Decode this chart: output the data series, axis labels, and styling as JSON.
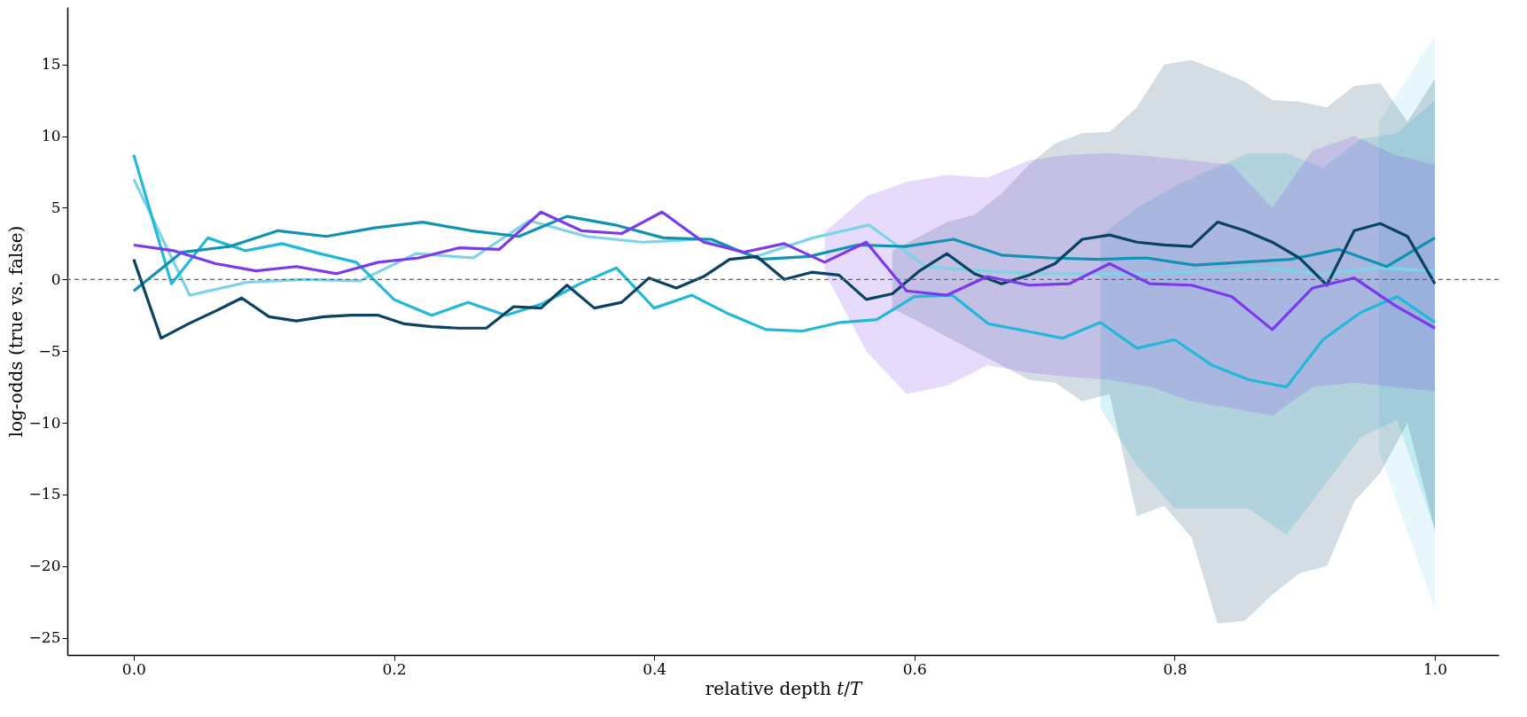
{
  "chart_data": {
    "type": "line",
    "xlabel": "relative depth 𝑡/𝑇",
    "ylabel": "log-odds (true vs. false)",
    "xlim": [
      -0.051,
      1.049
    ],
    "ylim": [
      -26.2,
      19.0
    ],
    "xticks": [
      {
        "value": 0,
        "label": "0.0"
      },
      {
        "value": 0.2,
        "label": "0.2"
      },
      {
        "value": 0.4,
        "label": "0.4"
      },
      {
        "value": 0.6,
        "label": "0.6"
      },
      {
        "value": 0.8,
        "label": "0.8"
      },
      {
        "value": 1,
        "label": "1.0"
      }
    ],
    "yticks": [
      -25,
      -20,
      -15,
      -10,
      -5,
      0,
      5,
      10,
      15
    ],
    "grid": false,
    "line_style": "solid",
    "marker": "none",
    "ref_lines": [
      {
        "axis": "y",
        "value": 0,
        "color": "#666666",
        "line_style": "dashed"
      }
    ],
    "series": [
      {
        "color": "#7dd3e8",
        "x": [
          0,
          0.043,
          0.087,
          0.13,
          0.174,
          0.217,
          0.261,
          0.304,
          0.348,
          0.391,
          0.435,
          0.478,
          0.522,
          0.565,
          0.609,
          0.652,
          0.696,
          0.739,
          0.783,
          0.826,
          0.87,
          0.913,
          0.957,
          1.0
        ],
        "values": [
          7.0,
          -1.1,
          -0.2,
          0.0,
          -0.1,
          1.8,
          1.5,
          4.1,
          3.0,
          2.6,
          2.8,
          1.6,
          2.9,
          3.8,
          0.9,
          0.6,
          0.4,
          0.4,
          0.4,
          0.6,
          0.8,
          0.4,
          0.8,
          0.6
        ],
        "lower": [
          null,
          null,
          null,
          null,
          null,
          null,
          null,
          null,
          null,
          null,
          null,
          null,
          null,
          null,
          null,
          null,
          null,
          null,
          null,
          null,
          null,
          null,
          -12.0,
          -23.0
        ],
        "upper": [
          null,
          null,
          null,
          null,
          null,
          null,
          null,
          null,
          null,
          null,
          null,
          null,
          null,
          null,
          null,
          null,
          null,
          null,
          null,
          null,
          null,
          null,
          11.0,
          17.0
        ]
      },
      {
        "color": "#22b8d9",
        "x": [
          0,
          0.029,
          0.057,
          0.086,
          0.114,
          0.143,
          0.171,
          0.2,
          0.229,
          0.257,
          0.286,
          0.314,
          0.343,
          0.371,
          0.4,
          0.429,
          0.457,
          0.486,
          0.514,
          0.543,
          0.571,
          0.6,
          0.629,
          0.657,
          0.686,
          0.714,
          0.743,
          0.771,
          0.8,
          0.829,
          0.857,
          0.886,
          0.914,
          0.943,
          0.971,
          1.0
        ],
        "values": [
          8.7,
          -0.3,
          2.9,
          2.0,
          2.5,
          1.8,
          1.2,
          -1.4,
          -2.5,
          -1.6,
          -2.5,
          -1.7,
          -0.3,
          0.8,
          -2.0,
          -1.1,
          -2.4,
          -3.5,
          -3.6,
          -3.0,
          -2.8,
          -1.2,
          -1.1,
          -3.1,
          -3.6,
          -4.1,
          -3.0,
          -4.8,
          -4.2,
          -6.0,
          -7.0,
          -7.5,
          -4.2,
          -2.3,
          -1.2,
          -3.0
        ],
        "lower": [
          null,
          null,
          null,
          null,
          null,
          null,
          null,
          null,
          null,
          null,
          null,
          null,
          null,
          null,
          null,
          null,
          null,
          null,
          null,
          null,
          null,
          null,
          null,
          null,
          null,
          null,
          -9.0,
          -13.0,
          -16.0,
          -16.0,
          -16.0,
          -17.8,
          -14.5,
          -11.0,
          -9.8,
          -17.5
        ],
        "upper": [
          null,
          null,
          null,
          null,
          null,
          null,
          null,
          null,
          null,
          null,
          null,
          null,
          null,
          null,
          null,
          null,
          null,
          null,
          null,
          null,
          null,
          null,
          null,
          null,
          null,
          null,
          3.0,
          5.0,
          6.5,
          7.7,
          8.8,
          8.8,
          7.8,
          9.8,
          10.2,
          12.5
        ]
      },
      {
        "color": "#0e93b3",
        "x": [
          0,
          0.037,
          0.074,
          0.111,
          0.148,
          0.185,
          0.222,
          0.259,
          0.296,
          0.333,
          0.37,
          0.407,
          0.444,
          0.481,
          0.519,
          0.556,
          0.593,
          0.63,
          0.667,
          0.704,
          0.741,
          0.778,
          0.815,
          0.852,
          0.889,
          0.926,
          0.963,
          1.0
        ],
        "values": [
          -0.8,
          1.9,
          2.3,
          3.4,
          3.0,
          3.6,
          4.0,
          3.4,
          3.0,
          4.4,
          3.8,
          2.9,
          2.8,
          1.4,
          1.6,
          2.4,
          2.3,
          2.8,
          1.7,
          1.5,
          1.4,
          1.5,
          1.0,
          1.2,
          1.4,
          2.1,
          0.9,
          2.9
        ]
      },
      {
        "color": "#0b4263",
        "x": [
          0,
          0.021,
          0.042,
          0.063,
          0.083,
          0.104,
          0.125,
          0.146,
          0.167,
          0.188,
          0.208,
          0.229,
          0.25,
          0.271,
          0.292,
          0.313,
          0.333,
          0.354,
          0.375,
          0.396,
          0.417,
          0.438,
          0.458,
          0.479,
          0.5,
          0.521,
          0.542,
          0.563,
          0.583,
          0.604,
          0.625,
          0.646,
          0.667,
          0.688,
          0.708,
          0.729,
          0.75,
          0.771,
          0.792,
          0.813,
          0.833,
          0.854,
          0.875,
          0.896,
          0.917,
          0.938,
          0.958,
          0.979,
          1.0
        ],
        "values": [
          1.4,
          -4.1,
          -3.1,
          -2.2,
          -1.3,
          -2.6,
          -2.9,
          -2.6,
          -2.5,
          -2.5,
          -3.1,
          -3.3,
          -3.4,
          -3.4,
          -1.9,
          -2.0,
          -0.4,
          -2.0,
          -1.6,
          0.1,
          -0.6,
          0.2,
          1.4,
          1.6,
          0.0,
          0.5,
          0.3,
          -1.4,
          -1.0,
          0.6,
          1.8,
          0.4,
          -0.3,
          0.3,
          1.1,
          2.8,
          3.1,
          2.6,
          2.4,
          2.3,
          4.0,
          3.4,
          2.6,
          1.5,
          -0.4,
          3.4,
          3.9,
          3.0,
          -0.3
        ],
        "lower": [
          null,
          null,
          null,
          null,
          null,
          null,
          null,
          null,
          null,
          null,
          null,
          null,
          null,
          null,
          null,
          null,
          null,
          null,
          null,
          null,
          null,
          null,
          null,
          null,
          null,
          null,
          null,
          null,
          -2.0,
          -3.0,
          -4.0,
          -5.0,
          -6.0,
          -7.0,
          -7.2,
          -8.5,
          -8.0,
          -16.5,
          -15.8,
          -18.0,
          -24.0,
          -23.8,
          -22.0,
          -20.5,
          -20.0,
          -15.5,
          -13.5,
          -10.0,
          -17.5
        ],
        "upper": [
          null,
          null,
          null,
          null,
          null,
          null,
          null,
          null,
          null,
          null,
          null,
          null,
          null,
          null,
          null,
          null,
          null,
          null,
          null,
          null,
          null,
          null,
          null,
          null,
          null,
          null,
          null,
          null,
          2.0,
          3.0,
          4.0,
          4.5,
          6.0,
          8.0,
          9.5,
          10.2,
          10.3,
          12.0,
          15.0,
          15.3,
          14.6,
          13.8,
          12.5,
          12.4,
          12.0,
          13.5,
          13.7,
          11.0,
          14.0
        ]
      },
      {
        "color": "#7c3aed",
        "x": [
          0,
          0.031,
          0.063,
          0.094,
          0.125,
          0.156,
          0.188,
          0.219,
          0.25,
          0.281,
          0.313,
          0.344,
          0.375,
          0.406,
          0.438,
          0.469,
          0.5,
          0.531,
          0.563,
          0.594,
          0.625,
          0.656,
          0.688,
          0.719,
          0.75,
          0.781,
          0.813,
          0.844,
          0.875,
          0.906,
          0.938,
          0.969,
          1.0
        ],
        "values": [
          2.4,
          2.0,
          1.1,
          0.6,
          0.9,
          0.4,
          1.2,
          1.5,
          2.2,
          2.1,
          4.7,
          3.4,
          3.2,
          4.7,
          2.6,
          1.9,
          2.5,
          1.2,
          2.6,
          -0.8,
          -1.1,
          0.2,
          -0.4,
          -0.3,
          1.1,
          -0.3,
          -0.4,
          -1.2,
          -3.5,
          -0.6,
          0.1,
          -1.8,
          -3.4
        ],
        "lower": [
          null,
          null,
          null,
          null,
          null,
          null,
          null,
          null,
          null,
          null,
          null,
          null,
          null,
          null,
          null,
          null,
          null,
          0.5,
          -5.0,
          -8.0,
          -7.4,
          -6.0,
          -6.5,
          -6.8,
          -7.0,
          -7.5,
          -8.5,
          -9.0,
          -9.5,
          -7.5,
          -7.2,
          -7.5,
          -7.8
        ],
        "upper": [
          null,
          null,
          null,
          null,
          null,
          null,
          null,
          null,
          null,
          null,
          null,
          null,
          null,
          null,
          null,
          null,
          null,
          3.3,
          5.8,
          6.8,
          7.3,
          7.1,
          8.3,
          8.7,
          8.8,
          8.6,
          8.3,
          8.0,
          5.0,
          9.0,
          10.0,
          8.7,
          8.0
        ]
      }
    ]
  }
}
